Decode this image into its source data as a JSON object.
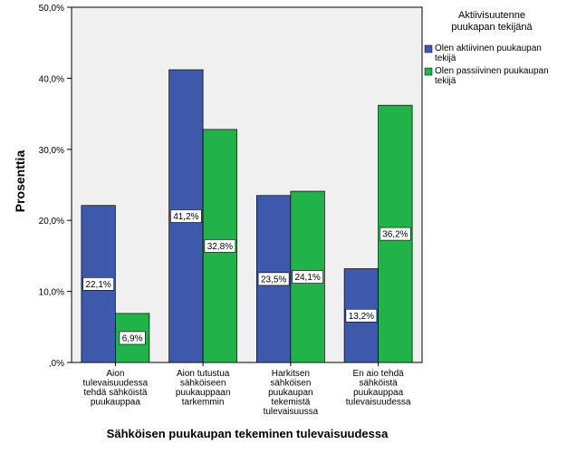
{
  "chart_data": {
    "type": "bar",
    "xlabel": "Sähköisen puukaupan tekeminen tulevaisuudessa",
    "ylabel": "Prosenttia",
    "ylim": [
      0,
      50
    ],
    "yticks": [
      ",0%",
      "10,0%",
      "20,0%",
      "30,0%",
      "40,0%",
      "50,0%"
    ],
    "grid": false,
    "legend_position": "right",
    "legend_title": [
      "Aktiivisuutenne",
      "puukapan tekijänä"
    ],
    "categories": [
      [
        "Aion",
        "tulevaisuudessa",
        "tehdä sähköistä",
        "puukauppaa"
      ],
      [
        "Aion tutustua",
        "sähköiseen",
        "puukauppaan",
        "tarkemmin"
      ],
      [
        "Harkitsen",
        "sähköisen",
        "puukaupan",
        "tekemistä",
        "tulevaisuussa"
      ],
      [
        "En aio tehdä",
        "sähköistä",
        "puukauppaa",
        "tulevaisuudessa"
      ]
    ],
    "series": [
      {
        "name": [
          "Olen aktiivinen puukaupan",
          "tekijä"
        ],
        "color": "#3e58ac",
        "values": [
          22.1,
          41.2,
          23.5,
          13.2
        ],
        "labels": [
          "22,1%",
          "41,2%",
          "23,5%",
          "13,2%"
        ]
      },
      {
        "name": [
          "Olen passiivinen puukaupan",
          "tekijä"
        ],
        "color": "#21b24a",
        "values": [
          6.9,
          32.8,
          24.1,
          36.2
        ],
        "labels": [
          "6,9%",
          "32,8%",
          "24,1%",
          "36,2%"
        ]
      }
    ]
  }
}
